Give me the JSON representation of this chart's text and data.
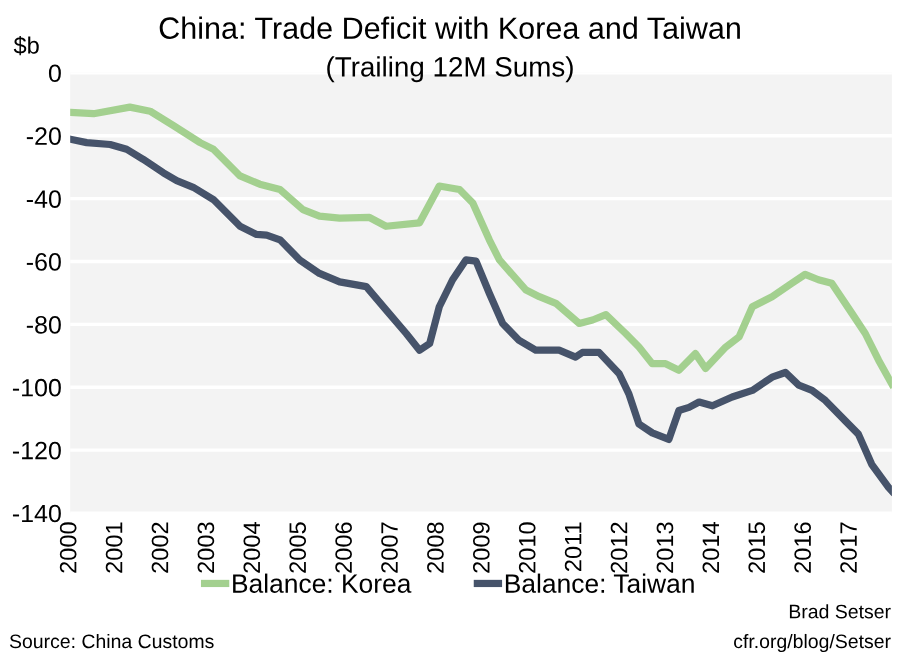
{
  "chart_data": {
    "type": "line",
    "title": "China: Trade Deficit with Korea and Taiwan",
    "subtitle": "(Trailing 12M Sums)",
    "ylabel": "$b",
    "xlim": [
      2000,
      2017.9
    ],
    "xticks": [
      2000,
      2001,
      2002,
      2003,
      2004,
      2005,
      2006,
      2007,
      2008,
      2009,
      2010,
      2011,
      2012,
      2013,
      2014,
      2015,
      2016,
      2017
    ],
    "ylim": [
      -140,
      0
    ],
    "yticks": [
      -140,
      -120,
      -100,
      -80,
      -60,
      -40,
      -20,
      0
    ],
    "grid": "y",
    "legend": "bottom",
    "line_style": "solid",
    "marker": "none",
    "annotations": [
      "Source: China Customs",
      "Brad Setser",
      "cfr.org/blog/Setser"
    ],
    "series": [
      {
        "name": "Balance: Korea",
        "color": "#a3d08f",
        "x": [
          2000.0,
          2000.51,
          2001.3,
          2001.74,
          2002.25,
          2002.83,
          2003.12,
          2003.7,
          2004.13,
          2004.57,
          2005.07,
          2005.43,
          2005.87,
          2006.52,
          2006.88,
          2007.61,
          2008.04,
          2008.48,
          2008.77,
          2009.13,
          2009.35,
          2009.93,
          2010.22,
          2010.58,
          2011.09,
          2011.38,
          2011.67,
          2012.1,
          2012.39,
          2012.68,
          2012.97,
          2013.26,
          2013.62,
          2013.84,
          2014.28,
          2014.57,
          2014.86,
          2015.29,
          2015.72,
          2016.01,
          2016.3,
          2016.59,
          2017.03,
          2017.32,
          2017.61,
          2017.9
        ],
        "values": [
          -12.6,
          -13,
          -10.9,
          -12.2,
          -16.8,
          -22.2,
          -24.3,
          -32.8,
          -35.4,
          -37.1,
          -43.5,
          -45.6,
          -46.2,
          -46,
          -48.8,
          -47.7,
          -36,
          -37.1,
          -41.4,
          -53.1,
          -59.5,
          -69.1,
          -71.2,
          -73.3,
          -79.7,
          -78.6,
          -76.9,
          -82.9,
          -87.2,
          -92.5,
          -92.5,
          -94.6,
          -89.3,
          -94,
          -87.2,
          -84,
          -74.4,
          -71.2,
          -66.9,
          -64.1,
          -65.8,
          -66.9,
          -76.5,
          -82.9,
          -91.4,
          -99
        ]
      },
      {
        "name": "Balance: Taiwan",
        "color": "#46536a",
        "x": [
          2000.0,
          2000.36,
          2000.87,
          2001.23,
          2001.59,
          2002.03,
          2002.32,
          2002.68,
          2003.12,
          2003.7,
          2004.06,
          2004.28,
          2004.57,
          2005.0,
          2005.43,
          2005.87,
          2006.45,
          2006.88,
          2007.32,
          2007.61,
          2007.83,
          2008.04,
          2008.33,
          2008.62,
          2008.84,
          2009.13,
          2009.42,
          2009.78,
          2010.14,
          2010.65,
          2011.01,
          2011.16,
          2011.52,
          2011.96,
          2012.17,
          2012.39,
          2012.68,
          2013.04,
          2013.26,
          2013.48,
          2013.7,
          2013.99,
          2014.42,
          2014.86,
          2015.29,
          2015.58,
          2015.87,
          2016.16,
          2016.45,
          2016.88,
          2017.17,
          2017.46,
          2017.83,
          2017.9
        ],
        "values": [
          -21.1,
          -22.2,
          -22.8,
          -24.3,
          -27.5,
          -31.8,
          -34.3,
          -36.4,
          -40.3,
          -48.8,
          -51.4,
          -51.6,
          -53.1,
          -59.5,
          -63.8,
          -66.5,
          -68,
          -75.4,
          -82.9,
          -88.2,
          -86.1,
          -74.4,
          -65.8,
          -59.5,
          -59.9,
          -70.1,
          -79.7,
          -85.1,
          -88.2,
          -88.2,
          -90.4,
          -88.9,
          -88.9,
          -95.7,
          -102.1,
          -111.7,
          -114.5,
          -116.6,
          -107.4,
          -106.4,
          -104.7,
          -105.9,
          -103.1,
          -101,
          -96.8,
          -95.3,
          -99.3,
          -101,
          -104.2,
          -110.6,
          -114.9,
          -124.5,
          -131.9,
          -133
        ]
      }
    ]
  }
}
